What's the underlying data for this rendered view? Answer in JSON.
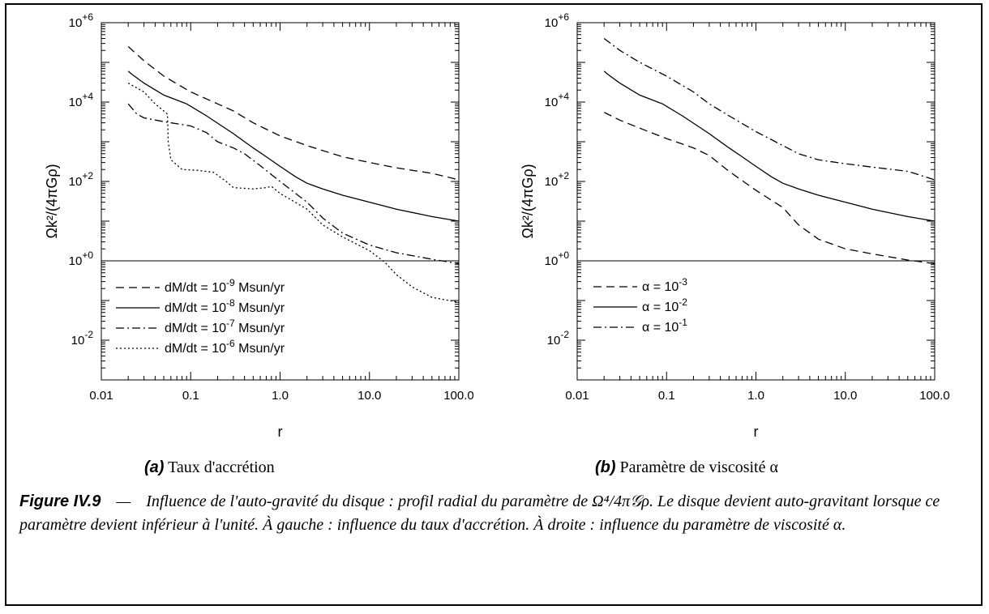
{
  "chart_data": [
    {
      "id": "a",
      "type": "line",
      "xscale": "log",
      "yscale": "log",
      "xlim": [
        0.01,
        100
      ],
      "ylim": [
        0.001,
        1000000
      ],
      "xlabel": "r",
      "ylabel": "Ωk²/(4πGρ)",
      "xticks": [
        "0.01",
        "0.1",
        "1.0",
        "10.0",
        "100.0"
      ],
      "yticks": [
        "10+6",
        "10+4",
        "10+2",
        "10+0",
        "10-2"
      ],
      "reference_line": 1,
      "legend_position": "lower-left",
      "series": [
        {
          "name": "dM/dt = 10-9 Msun/yr",
          "dash": "dashed",
          "points": [
            [
              0.02,
              250000
            ],
            [
              0.03,
              110000
            ],
            [
              0.05,
              45000
            ],
            [
              0.1,
              18000
            ],
            [
              0.2,
              9000
            ],
            [
              0.3,
              6000
            ],
            [
              0.5,
              3000
            ],
            [
              1,
              1400
            ],
            [
              2,
              800
            ],
            [
              3,
              600
            ],
            [
              5,
              420
            ],
            [
              10,
              300
            ],
            [
              20,
              220
            ],
            [
              50,
              160
            ],
            [
              100,
              110
            ]
          ]
        },
        {
          "name": "dM/dt = 10-8 Msun/yr",
          "dash": "solid",
          "points": [
            [
              0.02,
              60000
            ],
            [
              0.022,
              50000
            ],
            [
              0.03,
              30000
            ],
            [
              0.05,
              15000
            ],
            [
              0.09,
              9000
            ],
            [
              0.15,
              4500
            ],
            [
              0.3,
              1600
            ],
            [
              0.5,
              700
            ],
            [
              0.7,
              420
            ],
            [
              1,
              240
            ],
            [
              1.5,
              130
            ],
            [
              2,
              90
            ],
            [
              3,
              65
            ],
            [
              5,
              45
            ],
            [
              10,
              30
            ],
            [
              20,
              20
            ],
            [
              50,
              13
            ],
            [
              100,
              10
            ]
          ]
        },
        {
          "name": "dM/dt = 10-7 Msun/yr",
          "dash": "dashdot",
          "points": [
            [
              0.02,
              9000
            ],
            [
              0.025,
              5000
            ],
            [
              0.03,
              4000
            ],
            [
              0.05,
              3200
            ],
            [
              0.1,
              2500
            ],
            [
              0.15,
              1700
            ],
            [
              0.2,
              1000
            ],
            [
              0.3,
              700
            ],
            [
              0.4,
              500
            ],
            [
              0.6,
              250
            ],
            [
              1,
              100
            ],
            [
              2,
              30
            ],
            [
              3,
              12
            ],
            [
              5,
              5
            ],
            [
              10,
              2.5
            ],
            [
              20,
              1.6
            ],
            [
              50,
              1.1
            ],
            [
              100,
              0.85
            ]
          ]
        },
        {
          "name": "dM/dt = 10-6 Msun/yr",
          "dash": "dotted",
          "points": [
            [
              0.02,
              30000
            ],
            [
              0.03,
              18000
            ],
            [
              0.04,
              9000
            ],
            [
              0.055,
              5000
            ],
            [
              0.056,
              1000
            ],
            [
              0.06,
              350
            ],
            [
              0.08,
              200
            ],
            [
              0.12,
              190
            ],
            [
              0.18,
              170
            ],
            [
              0.25,
              100
            ],
            [
              0.3,
              70
            ],
            [
              0.5,
              65
            ],
            [
              0.7,
              70
            ],
            [
              0.8,
              75
            ],
            [
              1,
              50
            ],
            [
              2,
              20
            ],
            [
              3,
              8
            ],
            [
              5,
              4
            ],
            [
              10,
              1.8
            ],
            [
              15,
              0.9
            ],
            [
              20,
              0.45
            ],
            [
              30,
              0.22
            ],
            [
              50,
              0.12
            ],
            [
              100,
              0.09
            ]
          ]
        }
      ]
    },
    {
      "id": "b",
      "type": "line",
      "xscale": "log",
      "yscale": "log",
      "xlim": [
        0.01,
        100
      ],
      "ylim": [
        0.001,
        1000000
      ],
      "xlabel": "r",
      "ylabel": "Ωk²/(4πGρ)",
      "xticks": [
        "0.01",
        "0.1",
        "1.0",
        "10.0",
        "100.0"
      ],
      "yticks": [
        "10+6",
        "10+4",
        "10+2",
        "10+0",
        "10-2"
      ],
      "reference_line": 1,
      "legend_position": "lower-left",
      "series": [
        {
          "name": "α = 10-3",
          "dash": "dashed",
          "points": [
            [
              0.02,
              5500
            ],
            [
              0.03,
              3500
            ],
            [
              0.05,
              2200
            ],
            [
              0.1,
              1200
            ],
            [
              0.2,
              700
            ],
            [
              0.3,
              450
            ],
            [
              0.5,
              180
            ],
            [
              1,
              60
            ],
            [
              2,
              22
            ],
            [
              3,
              8
            ],
            [
              5,
              3.5
            ],
            [
              10,
              2
            ],
            [
              20,
              1.5
            ],
            [
              50,
              1.05
            ],
            [
              100,
              0.85
            ]
          ]
        },
        {
          "name": "α = 10-2",
          "dash": "solid",
          "points": [
            [
              0.02,
              60000
            ],
            [
              0.022,
              50000
            ],
            [
              0.03,
              30000
            ],
            [
              0.05,
              15000
            ],
            [
              0.09,
              9000
            ],
            [
              0.15,
              4500
            ],
            [
              0.3,
              1600
            ],
            [
              0.5,
              700
            ],
            [
              0.7,
              420
            ],
            [
              1,
              240
            ],
            [
              1.5,
              130
            ],
            [
              2,
              90
            ],
            [
              3,
              65
            ],
            [
              5,
              45
            ],
            [
              10,
              30
            ],
            [
              20,
              20
            ],
            [
              50,
              13
            ],
            [
              100,
              10
            ]
          ]
        },
        {
          "name": "α = 10-1",
          "dash": "dashdot",
          "points": [
            [
              0.02,
              400000
            ],
            [
              0.03,
              200000
            ],
            [
              0.05,
              100000
            ],
            [
              0.1,
              45000
            ],
            [
              0.2,
              18000
            ],
            [
              0.3,
              9000
            ],
            [
              0.5,
              4500
            ],
            [
              1,
              1800
            ],
            [
              2,
              800
            ],
            [
              3,
              500
            ],
            [
              5,
              350
            ],
            [
              10,
              280
            ],
            [
              20,
              230
            ],
            [
              50,
              180
            ],
            [
              100,
              110
            ]
          ]
        }
      ]
    }
  ],
  "subcaptions": [
    {
      "tag": "(a)",
      "text": "Taux d'accrétion"
    },
    {
      "tag": "(b)",
      "text": "Paramètre de viscosité α"
    }
  ],
  "caption": {
    "label": "Figure IV.9",
    "dash": "—",
    "text": "Influence de l'auto-gravité du disque : profil radial du paramètre de Ω⁴/4π𝒢ρ. Le disque devient auto-gravitant lorsque ce paramètre devient inférieur à l'unité. À gauche : influence du taux d'accrétion. À droite : influence du paramètre de viscosité α."
  }
}
